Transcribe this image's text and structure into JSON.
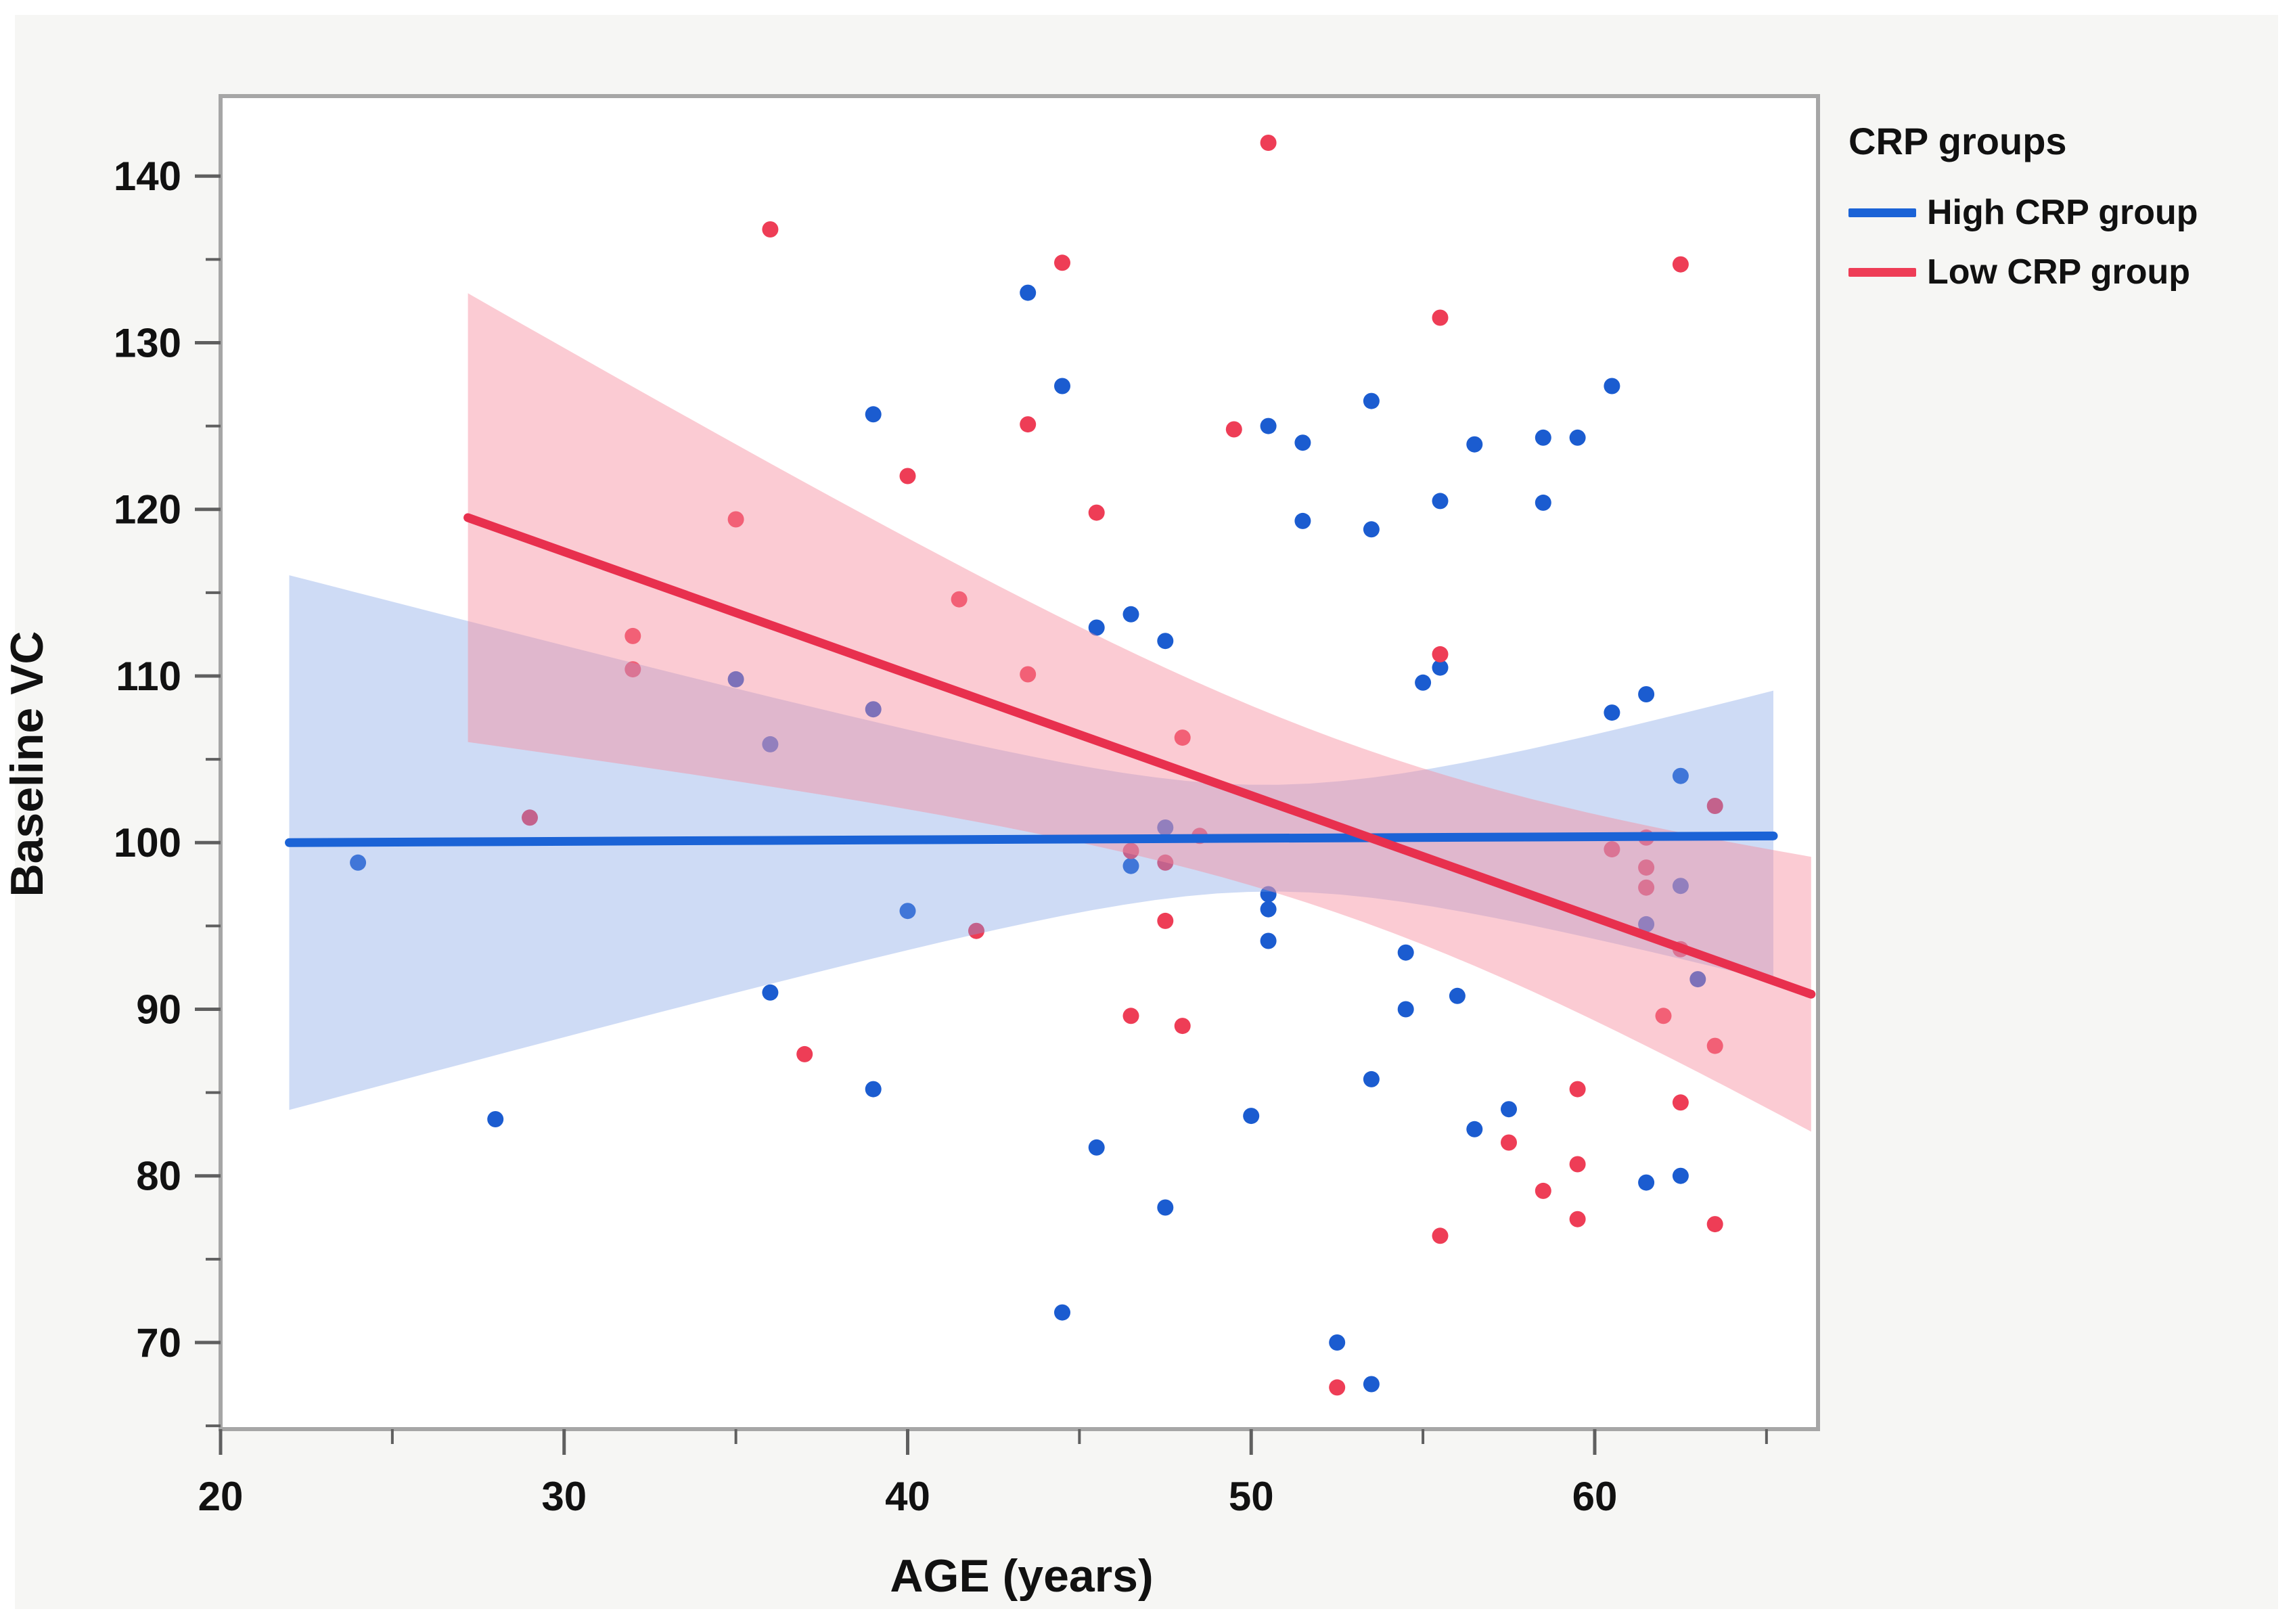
{
  "legend": {
    "title": "CRP groups",
    "items": [
      {
        "label": "High CRP group",
        "color": "#1b63d6"
      },
      {
        "label": "Low CRP group",
        "color": "#ee3d56"
      }
    ]
  },
  "chart_data": {
    "type": "scatter",
    "title": "",
    "xlabel": "AGE (years)",
    "ylabel": "Baseline VC",
    "xlim": [
      20,
      66.5
    ],
    "ylim": [
      64.8,
      144.8
    ],
    "grid": false,
    "legend_position": "right",
    "x_ticks_major": [
      20,
      30,
      40,
      50,
      60
    ],
    "x_ticks_minor": [
      25,
      35,
      45,
      55,
      65
    ],
    "y_ticks_major": [
      70,
      80,
      90,
      100,
      110,
      120,
      130,
      140
    ],
    "y_ticks_minor": [
      65,
      75,
      85,
      95,
      105,
      115,
      125,
      135
    ],
    "colors": {
      "high_point": "#1b5cd0",
      "high_line": "#1b63d6",
      "high_band": "rgba(125,160,230,0.38)",
      "low_point": "#ee3d56",
      "low_line": "#e8304e",
      "low_band": "rgba(246,140,158,0.45)",
      "frame": "#a6a6a6",
      "tick": "#5f5f5f",
      "label": "#111111"
    },
    "series": [
      {
        "name": "High CRP group",
        "points": [
          [
            24,
            98.8
          ],
          [
            28,
            83.4
          ],
          [
            35,
            109.8
          ],
          [
            36,
            105.9
          ],
          [
            36,
            91
          ],
          [
            39,
            125.7
          ],
          [
            39,
            108
          ],
          [
            39,
            85.2
          ],
          [
            40,
            95.9
          ],
          [
            43.5,
            133
          ],
          [
            44.5,
            127.4
          ],
          [
            44.5,
            71.8
          ],
          [
            45.5,
            112.9
          ],
          [
            45.5,
            81.7
          ],
          [
            46.5,
            113.7
          ],
          [
            46.5,
            98.6
          ],
          [
            47.5,
            112.1
          ],
          [
            47.5,
            100.9
          ],
          [
            47.5,
            78.1
          ],
          [
            50,
            83.6
          ],
          [
            50.5,
            125
          ],
          [
            50.5,
            96.9
          ],
          [
            50.5,
            96
          ],
          [
            50.5,
            94.1
          ],
          [
            51.5,
            124
          ],
          [
            51.5,
            119.3
          ],
          [
            52.5,
            70
          ],
          [
            53.5,
            126.5
          ],
          [
            53.5,
            118.8
          ],
          [
            53.5,
            85.8
          ],
          [
            53.5,
            67.5
          ],
          [
            54.5,
            93.4
          ],
          [
            54.5,
            90
          ],
          [
            55,
            109.6
          ],
          [
            55.5,
            120.5
          ],
          [
            55.5,
            110.5
          ],
          [
            56,
            90.8
          ],
          [
            56.5,
            123.9
          ],
          [
            56.5,
            82.8
          ],
          [
            57.5,
            84
          ],
          [
            58.5,
            124.3
          ],
          [
            58.5,
            120.4
          ],
          [
            59.5,
            124.3
          ],
          [
            60.5,
            127.4
          ],
          [
            60.5,
            107.8
          ],
          [
            61.5,
            108.9
          ],
          [
            61.5,
            95.1
          ],
          [
            61.5,
            79.6
          ],
          [
            62.5,
            104
          ],
          [
            62.5,
            97.4
          ],
          [
            62.5,
            80
          ],
          [
            63,
            91.8
          ]
        ]
      },
      {
        "name": "Low CRP group",
        "points": [
          [
            29,
            101.5
          ],
          [
            32,
            112.4
          ],
          [
            32,
            110.4
          ],
          [
            35,
            119.4
          ],
          [
            36,
            136.8
          ],
          [
            37,
            87.3
          ],
          [
            40,
            122
          ],
          [
            41.5,
            114.6
          ],
          [
            42,
            94.7
          ],
          [
            43.5,
            125.1
          ],
          [
            43.5,
            110.1
          ],
          [
            44.5,
            134.8
          ],
          [
            45.5,
            119.8
          ],
          [
            46.5,
            99.5
          ],
          [
            46.5,
            89.6
          ],
          [
            47.5,
            98.8
          ],
          [
            47.5,
            95.3
          ],
          [
            48,
            106.3
          ],
          [
            48,
            89
          ],
          [
            48.5,
            100.4
          ],
          [
            49.5,
            124.8
          ],
          [
            50.5,
            142
          ],
          [
            52.5,
            67.3
          ],
          [
            55.5,
            131.5
          ],
          [
            55.5,
            111.3
          ],
          [
            55.5,
            76.4
          ],
          [
            57.5,
            82
          ],
          [
            58.5,
            79.1
          ],
          [
            59.5,
            85.2
          ],
          [
            59.5,
            80.7
          ],
          [
            59.5,
            77.4
          ],
          [
            60.5,
            99.6
          ],
          [
            61.5,
            100.3
          ],
          [
            61.5,
            98.5
          ],
          [
            61.5,
            97.3
          ],
          [
            62,
            89.6
          ],
          [
            62.5,
            134.7
          ],
          [
            62.5,
            93.6
          ],
          [
            62.5,
            84.4
          ],
          [
            63.5,
            102.2
          ],
          [
            63.5,
            87.8
          ],
          [
            63.5,
            77.1
          ]
        ]
      }
    ],
    "fits": [
      {
        "name": "High CRP fit",
        "x_start": 22,
        "y_start": 100.0,
        "x_end": 65.2,
        "y_end": 100.4,
        "band": {
          "half_width_at_waist": 3.2,
          "waist_x": 50.5,
          "spread": 5.8
        }
      },
      {
        "name": "Low CRP fit",
        "x_start": 27.2,
        "y_start": 119.5,
        "x_end": 66.3,
        "y_end": 90.9,
        "band": {
          "half_width_at_waist": 5.2,
          "waist_x": 53,
          "spread": 10.8
        }
      }
    ]
  }
}
